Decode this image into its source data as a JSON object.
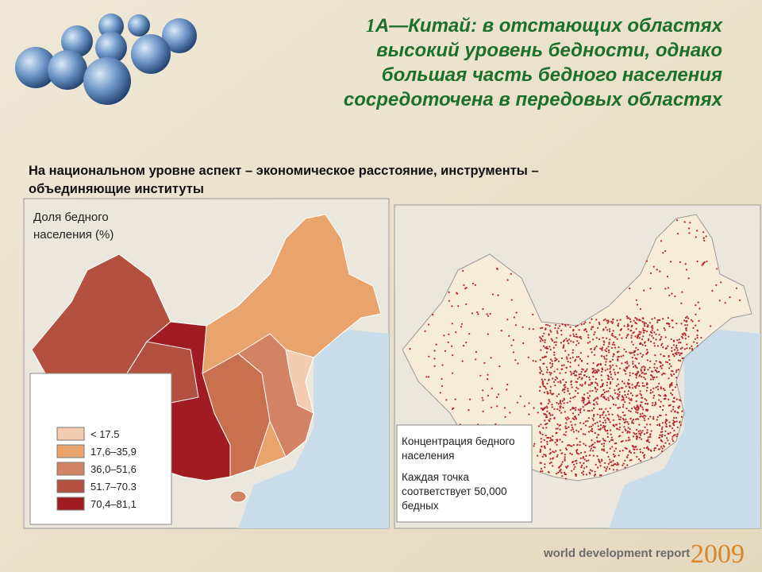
{
  "header": {
    "number": "1",
    "title_lines": [
      "А—Китай: в отстающих областях",
      "высокий уровень бедности, однако",
      "большая часть бедного населения",
      "сосредоточена в передовых областях"
    ],
    "subtitle_lines": [
      "На национальном уровне аспект – экономическое расстояние, инструменты –",
      "объединяющие институты"
    ]
  },
  "left_map": {
    "legend_title": [
      "Доля бедного",
      "населения (%)"
    ],
    "legend": [
      {
        "label": "< 17.5",
        "color": "#f4cdb0"
      },
      {
        "label": "17,6–35,9",
        "color": "#e8a46c"
      },
      {
        "label": "36,0–51,6",
        "color": "#d28366"
      },
      {
        "label": "51.7–70.3",
        "color": "#b45040"
      },
      {
        "label": "70,4–81,1",
        "color": "#a01c22"
      }
    ]
  },
  "right_map": {
    "legend": [
      "Концентрация бедного",
      "населения",
      "Каждая точка",
      "соответствует 50,000",
      "бедных"
    ],
    "dot_color": "#b3262a"
  },
  "footer": {
    "text": "world development report",
    "year": "2009"
  }
}
